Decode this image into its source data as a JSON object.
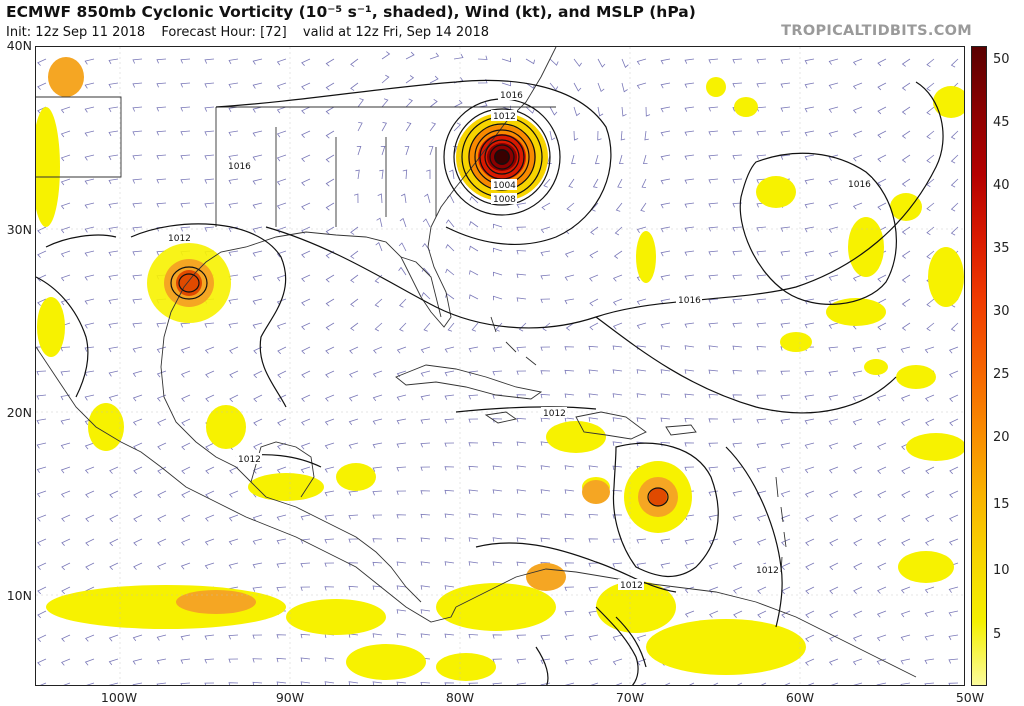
{
  "header": {
    "title": "ECMWF 850mb Cyclonic Vorticity (10⁻⁵ s⁻¹, shaded), Wind (kt), and MSLP (hPa)",
    "init": "Init: 12z Sep 11 2018",
    "forecast_hour": "Forecast Hour: [72]",
    "valid": "valid at 12z Fri, Sep 14 2018",
    "credit": "TROPICALTIDBITS.COM"
  },
  "axes": {
    "lat_labels": [
      "40N",
      "30N",
      "20N",
      "10N"
    ],
    "lon_labels": [
      "100W",
      "90W",
      "80W",
      "70W",
      "60W",
      "50W"
    ]
  },
  "colorbar": {
    "ticks": [
      "50",
      "45",
      "40",
      "35",
      "30",
      "25",
      "20",
      "15",
      "10",
      "5"
    ],
    "colors": [
      "#5a0000",
      "#8b0000",
      "#b40000",
      "#d91a00",
      "#f03c00",
      "#f56200",
      "#f88a00",
      "#f9b200",
      "#f7d400",
      "#f4f000",
      "#fbfb9c"
    ]
  },
  "isobar_labels": [
    "1016",
    "1012",
    "1016",
    "1012",
    "1012",
    "1012",
    "1008",
    "1004",
    "1016",
    "1016",
    "1012",
    "1012"
  ],
  "map_colors": {
    "coast": "#333333",
    "isobar": "#111111",
    "wind_barb": "#7a78b8",
    "vort_low": "#f7f200",
    "vort_mid": "#f5a623",
    "vort_high": "#e04a00"
  }
}
